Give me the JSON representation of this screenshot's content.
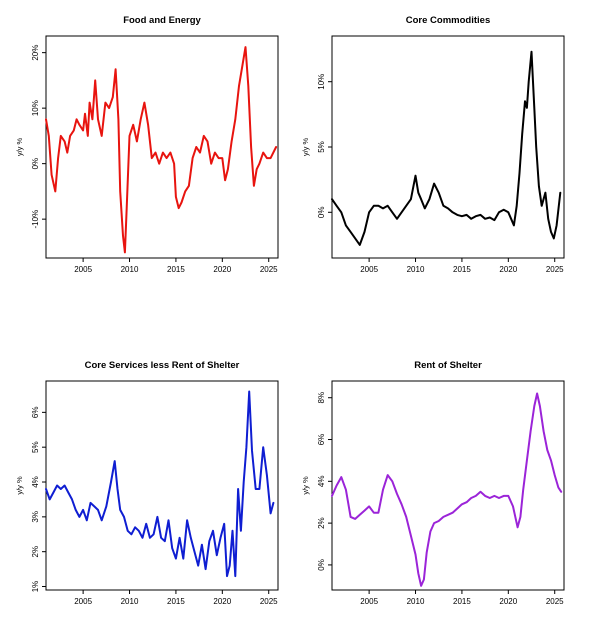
{
  "chart_data": [
    {
      "type": "line",
      "title": "Food and Energy",
      "ylabel": "y/y %",
      "xlim": [
        2001,
        2026
      ],
      "ylim": [
        -17,
        23
      ],
      "x_ticks": [
        2005,
        2010,
        2015,
        2020,
        2025
      ],
      "y_ticks": [
        -10,
        0,
        10,
        20
      ],
      "y_tick_labels": [
        "-10%",
        "0%",
        "10%",
        "20%"
      ],
      "color": "#e8140f",
      "series": [
        {
          "x": [
            2001.0,
            2001.3,
            2001.6,
            2002.0,
            2002.3,
            2002.6,
            2003.0,
            2003.3,
            2003.6,
            2004.0,
            2004.3,
            2004.6,
            2005.0,
            2005.2,
            2005.5,
            2005.7,
            2006.0,
            2006.3,
            2006.6,
            2007.0,
            2007.4,
            2007.8,
            2008.2,
            2008.5,
            2008.8,
            2009.0,
            2009.3,
            2009.5,
            2009.7,
            2010.0,
            2010.4,
            2010.8,
            2011.2,
            2011.6,
            2012.0,
            2012.4,
            2012.8,
            2013.2,
            2013.6,
            2014.0,
            2014.4,
            2014.8,
            2015.0,
            2015.3,
            2015.6,
            2016.0,
            2016.4,
            2016.8,
            2017.2,
            2017.6,
            2018.0,
            2018.4,
            2018.8,
            2019.2,
            2019.6,
            2020.0,
            2020.3,
            2020.6,
            2021.0,
            2021.4,
            2021.8,
            2022.2,
            2022.5,
            2022.8,
            2023.1,
            2023.4,
            2023.7,
            2024.0,
            2024.4,
            2024.8,
            2025.2,
            2025.8
          ],
          "y": [
            8,
            5,
            -2,
            -5,
            1,
            5,
            4,
            2,
            5,
            6,
            8,
            7,
            6,
            9,
            5,
            11,
            8,
            15,
            8,
            5,
            11,
            10,
            12,
            17,
            8,
            -5,
            -13,
            -16,
            -8,
            5,
            7,
            4,
            8,
            11,
            7,
            1,
            2,
            0,
            2,
            1,
            2,
            0,
            -6,
            -8,
            -7,
            -5,
            -4,
            1,
            3,
            2,
            5,
            4,
            0,
            2,
            1,
            1,
            -3,
            -1,
            4,
            8,
            14,
            18,
            21,
            14,
            3,
            -4,
            -1,
            0,
            2,
            1,
            1,
            3
          ]
        }
      ]
    },
    {
      "type": "line",
      "title": "Core Commodities",
      "ylabel": "y/y %",
      "xlim": [
        2001,
        2026
      ],
      "ylim": [
        -3.5,
        13.5
      ],
      "x_ticks": [
        2005,
        2010,
        2015,
        2020,
        2025
      ],
      "y_ticks": [
        0,
        5,
        10
      ],
      "y_tick_labels": [
        "0%",
        "5%",
        "10%"
      ],
      "color": "#000000",
      "series": [
        {
          "x": [
            2001.0,
            2001.5,
            2002.0,
            2002.5,
            2003.0,
            2003.5,
            2004.0,
            2004.5,
            2005.0,
            2005.5,
            2006.0,
            2006.5,
            2007.0,
            2007.5,
            2008.0,
            2008.5,
            2009.0,
            2009.5,
            2010.0,
            2010.3,
            2010.6,
            2011.0,
            2011.5,
            2012.0,
            2012.5,
            2013.0,
            2013.5,
            2014.0,
            2014.5,
            2015.0,
            2015.5,
            2016.0,
            2016.5,
            2017.0,
            2017.5,
            2018.0,
            2018.5,
            2019.0,
            2019.5,
            2020.0,
            2020.3,
            2020.6,
            2020.9,
            2021.2,
            2021.5,
            2021.8,
            2022.0,
            2022.2,
            2022.5,
            2022.8,
            2023.0,
            2023.3,
            2023.6,
            2024.0,
            2024.3,
            2024.6,
            2024.9,
            2025.2,
            2025.6
          ],
          "y": [
            1,
            0.5,
            0,
            -1,
            -1.5,
            -2,
            -2.5,
            -1.5,
            0,
            0.5,
            0.5,
            0.3,
            0.5,
            0,
            -0.5,
            0,
            0.5,
            1,
            2.8,
            1.5,
            1,
            0.3,
            1,
            2.2,
            1.5,
            0.5,
            0.3,
            0,
            -0.2,
            -0.3,
            -0.2,
            -0.5,
            -0.3,
            -0.2,
            -0.5,
            -0.4,
            -0.6,
            0,
            0.2,
            0,
            -0.5,
            -1,
            0.5,
            3,
            6,
            8.5,
            8,
            10,
            12.3,
            8,
            5,
            2,
            0.5,
            1.5,
            -0.5,
            -1.5,
            -2,
            -1,
            1.5
          ]
        }
      ]
    },
    {
      "type": "line",
      "title": "Core Services less Rent of Shelter",
      "ylabel": "y/y %",
      "xlim": [
        2001,
        2026
      ],
      "ylim": [
        0.9,
        6.9
      ],
      "x_ticks": [
        2005,
        2010,
        2015,
        2020,
        2025
      ],
      "y_ticks": [
        1,
        2,
        3,
        4,
        5,
        6
      ],
      "y_tick_labels": [
        "1%",
        "2%",
        "3%",
        "4%",
        "5%",
        "6%"
      ],
      "color": "#0f1ed2",
      "series": [
        {
          "x": [
            2001.0,
            2001.4,
            2001.8,
            2002.2,
            2002.6,
            2003.0,
            2003.4,
            2003.8,
            2004.2,
            2004.6,
            2005.0,
            2005.4,
            2005.8,
            2006.2,
            2006.6,
            2007.0,
            2007.5,
            2008.0,
            2008.4,
            2008.7,
            2009.0,
            2009.4,
            2009.8,
            2010.2,
            2010.6,
            2011.0,
            2011.4,
            2011.8,
            2012.2,
            2012.6,
            2013.0,
            2013.4,
            2013.8,
            2014.2,
            2014.6,
            2015.0,
            2015.4,
            2015.8,
            2016.2,
            2016.6,
            2017.0,
            2017.4,
            2017.8,
            2018.2,
            2018.6,
            2019.0,
            2019.4,
            2019.8,
            2020.2,
            2020.5,
            2020.8,
            2021.1,
            2021.4,
            2021.7,
            2022.0,
            2022.3,
            2022.6,
            2022.9,
            2023.2,
            2023.6,
            2024.0,
            2024.4,
            2024.8,
            2025.2,
            2025.5
          ],
          "y": [
            3.8,
            3.5,
            3.7,
            3.9,
            3.8,
            3.9,
            3.7,
            3.5,
            3.2,
            3.0,
            3.2,
            2.9,
            3.4,
            3.3,
            3.2,
            2.9,
            3.3,
            4.0,
            4.6,
            3.8,
            3.2,
            3.0,
            2.6,
            2.5,
            2.7,
            2.6,
            2.4,
            2.8,
            2.4,
            2.5,
            3.0,
            2.4,
            2.3,
            2.9,
            2.1,
            1.8,
            2.4,
            1.8,
            2.9,
            2.4,
            2.0,
            1.6,
            2.2,
            1.5,
            2.3,
            2.6,
            1.9,
            2.4,
            2.8,
            1.3,
            1.6,
            2.6,
            1.3,
            3.8,
            2.6,
            4.0,
            5.0,
            6.6,
            4.9,
            3.8,
            3.8,
            5.0,
            4.2,
            3.1,
            3.4
          ]
        }
      ]
    },
    {
      "type": "line",
      "title": "Rent of Shelter",
      "ylabel": "y/y %",
      "xlim": [
        2001,
        2026
      ],
      "ylim": [
        -1.2,
        8.8
      ],
      "x_ticks": [
        2005,
        2010,
        2015,
        2020,
        2025
      ],
      "y_ticks": [
        0,
        2,
        4,
        6,
        8
      ],
      "y_tick_labels": [
        "0%",
        "2%",
        "4%",
        "6%",
        "8%"
      ],
      "color": "#9b24d8",
      "series": [
        {
          "x": [
            2001.0,
            2001.5,
            2002.0,
            2002.5,
            2003.0,
            2003.5,
            2004.0,
            2004.5,
            2005.0,
            2005.5,
            2006.0,
            2006.5,
            2007.0,
            2007.5,
            2008.0,
            2008.5,
            2009.0,
            2009.5,
            2010.0,
            2010.3,
            2010.6,
            2010.9,
            2011.2,
            2011.6,
            2012.0,
            2012.5,
            2013.0,
            2013.5,
            2014.0,
            2014.5,
            2015.0,
            2015.5,
            2016.0,
            2016.5,
            2017.0,
            2017.5,
            2018.0,
            2018.5,
            2019.0,
            2019.5,
            2020.0,
            2020.5,
            2021.0,
            2021.3,
            2021.6,
            2022.0,
            2022.4,
            2022.8,
            2023.1,
            2023.4,
            2023.8,
            2024.2,
            2024.6,
            2025.0,
            2025.4,
            2025.7
          ],
          "y": [
            3.3,
            3.8,
            4.2,
            3.6,
            2.3,
            2.2,
            2.4,
            2.6,
            2.8,
            2.5,
            2.5,
            3.6,
            4.3,
            4.0,
            3.4,
            2.9,
            2.3,
            1.4,
            0.5,
            -0.4,
            -1.0,
            -0.7,
            0.6,
            1.6,
            2.0,
            2.1,
            2.3,
            2.4,
            2.5,
            2.7,
            2.9,
            3.0,
            3.2,
            3.3,
            3.5,
            3.3,
            3.2,
            3.3,
            3.2,
            3.3,
            3.3,
            2.8,
            1.8,
            2.3,
            3.6,
            5.0,
            6.4,
            7.6,
            8.2,
            7.6,
            6.4,
            5.5,
            5.0,
            4.3,
            3.7,
            3.5
          ]
        }
      ]
    }
  ]
}
